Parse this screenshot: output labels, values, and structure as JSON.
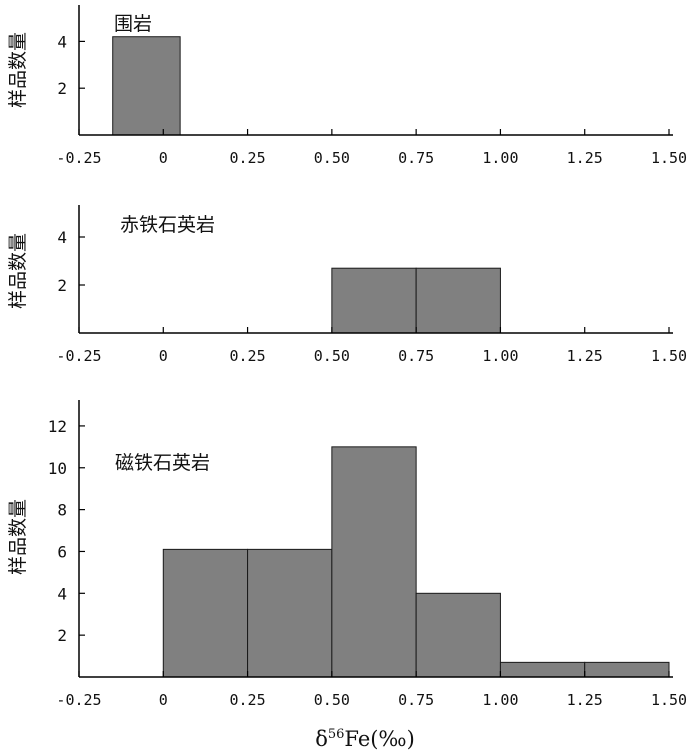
{
  "chart_data": [
    {
      "type": "bar",
      "title": "围岩",
      "ylabel": "样品数量",
      "xlim": [
        -0.25,
        1.5
      ],
      "ylim": [
        0,
        5
      ],
      "xticks": [
        -0.25,
        0,
        0.25,
        0.5,
        0.75,
        1.0,
        1.25,
        1.5
      ],
      "xtick_labels": [
        "-0.25",
        "0",
        "0.25",
        "0.50",
        "0.75",
        "1.00",
        "1.25",
        "1.50"
      ],
      "yticks": [
        2,
        4
      ],
      "ytick_labels": [
        "2",
        "4"
      ],
      "bins": [
        {
          "start": -0.15,
          "end": 0.05,
          "value": 4.2
        }
      ]
    },
    {
      "type": "bar",
      "title": "赤铁石英岩",
      "ylabel": "样品数量",
      "xlim": [
        -0.25,
        1.5
      ],
      "ylim": [
        0,
        5
      ],
      "xticks": [
        -0.25,
        0,
        0.25,
        0.5,
        0.75,
        1.0,
        1.25,
        1.5
      ],
      "xtick_labels": [
        "-0.25",
        "0",
        "0.25",
        "0.50",
        "0.75",
        "1.00",
        "1.25",
        "1.50"
      ],
      "yticks": [
        2,
        4
      ],
      "ytick_labels": [
        "2",
        "4"
      ],
      "bins": [
        {
          "start": 0.5,
          "end": 0.75,
          "value": 2.7
        },
        {
          "start": 0.75,
          "end": 1.0,
          "value": 2.7
        }
      ]
    },
    {
      "type": "bar",
      "title": "磁铁石英岩",
      "ylabel": "样品数量",
      "xlabel_main": "δ",
      "xlabel_sup": "56",
      "xlabel_rest": "Fe(‰)",
      "xlim": [
        -0.25,
        1.5
      ],
      "ylim": [
        0,
        13
      ],
      "xticks": [
        -0.25,
        0,
        0.25,
        0.5,
        0.75,
        1.0,
        1.25,
        1.5
      ],
      "xtick_labels": [
        "-0.25",
        "0",
        "0.25",
        "0.50",
        "0.75",
        "1.00",
        "1.25",
        "1.50"
      ],
      "yticks": [
        2,
        4,
        6,
        8,
        10,
        12
      ],
      "ytick_labels": [
        "2",
        "4",
        "6",
        "8",
        "10",
        "12"
      ],
      "bins": [
        {
          "start": 0.0,
          "end": 0.25,
          "value": 6.1
        },
        {
          "start": 0.25,
          "end": 0.5,
          "value": 6.1
        },
        {
          "start": 0.5,
          "end": 0.75,
          "value": 11
        },
        {
          "start": 0.75,
          "end": 1.0,
          "value": 4
        },
        {
          "start": 1.0,
          "end": 1.25,
          "value": 0.7
        },
        {
          "start": 1.25,
          "end": 1.5,
          "value": 0.7
        }
      ]
    }
  ],
  "colors": {
    "bar_fill": "#808080",
    "bar_stroke": "#1a1a1a",
    "axis": "#000000"
  }
}
